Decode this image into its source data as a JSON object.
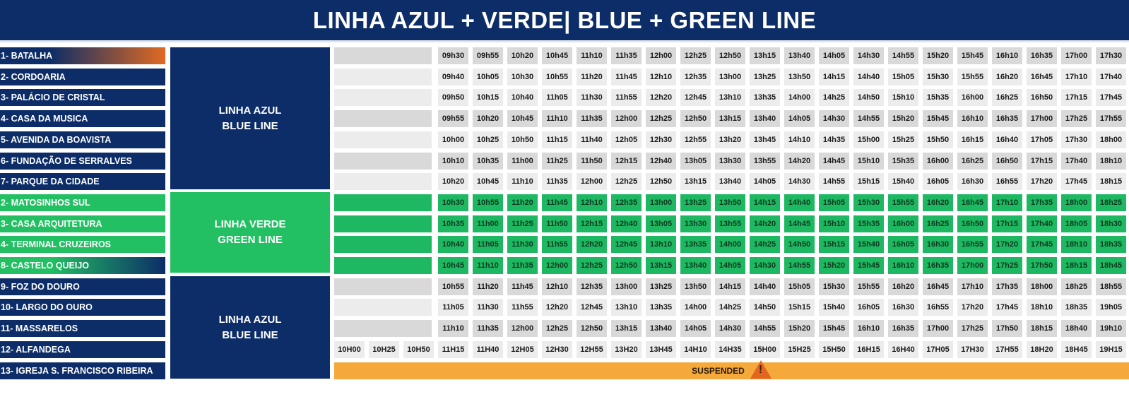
{
  "title": "LINHA AZUL + VERDE|  BLUE + GREEN LINE",
  "colors": {
    "navy": "#0c2d67",
    "green": "#22c063",
    "orange": "#e06a22",
    "suspended": "#f5a93a"
  },
  "line_blocks": [
    {
      "line1": "LINHA AZUL",
      "line2": "BLUE LINE",
      "color": "blue"
    },
    {
      "line1": "LINHA VERDE",
      "line2": "GREEN LINE",
      "color": "green"
    },
    {
      "line1": "LINHA AZUL",
      "line2": "BLUE LINE",
      "color": "blue"
    }
  ],
  "rows": [
    {
      "station": "1- BATALHA",
      "style": "grad-orange",
      "tone": "dark",
      "times": [
        "09h30",
        "09h55",
        "10h20",
        "10h45",
        "11h10",
        "11h35",
        "12h00",
        "12h25",
        "12h50",
        "13h15",
        "13h40",
        "14h05",
        "14h30",
        "14h55",
        "15h20",
        "15h45",
        "16h10",
        "16h35",
        "17h00",
        "17h30"
      ]
    },
    {
      "station": "2- CORDOARIA",
      "style": "blue",
      "tone": "light",
      "times": [
        "09h40",
        "10h05",
        "10h30",
        "10h55",
        "11h20",
        "11h45",
        "12h10",
        "12h35",
        "13h00",
        "13h25",
        "13h50",
        "14h15",
        "14h40",
        "15h05",
        "15h30",
        "15h55",
        "16h20",
        "16h45",
        "17h10",
        "17h40"
      ]
    },
    {
      "station": "3- PALÁCIO DE CRISTAL",
      "style": "blue",
      "tone": "light",
      "times": [
        "09h50",
        "10h15",
        "10h40",
        "11h05",
        "11h30",
        "11h55",
        "12h20",
        "12h45",
        "13h10",
        "13h35",
        "14h00",
        "14h25",
        "14h50",
        "15h10",
        "15h35",
        "16h00",
        "16h25",
        "16h50",
        "17h15",
        "17h45"
      ]
    },
    {
      "station": "4- CASA DA MUSICA",
      "style": "blue",
      "tone": "dark",
      "times": [
        "09h55",
        "10h20",
        "10h45",
        "11h10",
        "11h35",
        "12h00",
        "12h25",
        "12h50",
        "13h15",
        "13h40",
        "14h05",
        "14h30",
        "14h55",
        "15h20",
        "15h45",
        "16h10",
        "16h35",
        "17h00",
        "17h25",
        "17h55"
      ]
    },
    {
      "station": "5- AVENIDA DA BOAVISTA",
      "style": "blue",
      "tone": "light",
      "times": [
        "10h00",
        "10h25",
        "10h50",
        "11h15",
        "11h40",
        "12h05",
        "12h30",
        "12h55",
        "13h20",
        "13h45",
        "14h10",
        "14h35",
        "15h00",
        "15h25",
        "15h50",
        "16h15",
        "16h40",
        "17h05",
        "17h30",
        "18h00"
      ]
    },
    {
      "station": "6- FUNDAÇÃO DE SERRALVES",
      "style": "blue",
      "tone": "dark",
      "times": [
        "10h10",
        "10h35",
        "11h00",
        "11h25",
        "11h50",
        "12h15",
        "12h40",
        "13h05",
        "13h30",
        "13h55",
        "14h20",
        "14h45",
        "15h10",
        "15h35",
        "16h00",
        "16h25",
        "16h50",
        "17h15",
        "17h40",
        "18h10"
      ]
    },
    {
      "station": "7- PARQUE DA CIDADE",
      "style": "blue",
      "tone": "light",
      "times": [
        "10h20",
        "10h45",
        "11h10",
        "11h35",
        "12h00",
        "12h25",
        "12h50",
        "13h15",
        "13h40",
        "14h05",
        "14h30",
        "14h55",
        "15h15",
        "15h40",
        "16h05",
        "16h30",
        "16h55",
        "17h20",
        "17h45",
        "18h15"
      ]
    },
    {
      "station": "2- MATOSINHOS SUL",
      "style": "green",
      "tone": "green",
      "times": [
        "10h30",
        "10h55",
        "11h20",
        "11h45",
        "12h10",
        "12h35",
        "13h00",
        "13h25",
        "13h50",
        "14h15",
        "14h40",
        "15h05",
        "15h30",
        "15h55",
        "16h20",
        "16h45",
        "17h10",
        "17h35",
        "18h00",
        "18h25"
      ]
    },
    {
      "station": "3- CASA ARQUITETURA",
      "style": "green",
      "tone": "green",
      "times": [
        "10h35",
        "11h00",
        "11h25",
        "11h50",
        "12h15",
        "12h40",
        "13h05",
        "13h30",
        "13h55",
        "14h20",
        "14h45",
        "15h10",
        "15h35",
        "16h00",
        "16h25",
        "16h50",
        "17h15",
        "17h40",
        "18h05",
        "18h30"
      ]
    },
    {
      "station": "4- TERMINAL CRUZEIROS",
      "style": "green",
      "tone": "green",
      "times": [
        "10h40",
        "11h05",
        "11h30",
        "11h55",
        "12h20",
        "12h45",
        "13h10",
        "13h35",
        "14h00",
        "14h25",
        "14h50",
        "15h15",
        "15h40",
        "16h05",
        "16h30",
        "16h55",
        "17h20",
        "17h45",
        "18h10",
        "18h35"
      ]
    },
    {
      "station": "8- CASTELO QUEIJO",
      "style": "grad-green",
      "tone": "green",
      "times": [
        "10h45",
        "11h10",
        "11h35",
        "12h00",
        "12h25",
        "12h50",
        "13h15",
        "13h40",
        "14h05",
        "14h30",
        "14h55",
        "15h20",
        "15h45",
        "16h10",
        "16h35",
        "17h00",
        "17h25",
        "17h50",
        "18h15",
        "18h45"
      ]
    },
    {
      "station": "9- FOZ DO DOURO",
      "style": "blue",
      "tone": "dark",
      "times": [
        "10h55",
        "11h20",
        "11h45",
        "12h10",
        "12h35",
        "13h00",
        "13h25",
        "13h50",
        "14h15",
        "14h40",
        "15h05",
        "15h30",
        "15h55",
        "16h20",
        "16h45",
        "17h10",
        "17h35",
        "18h00",
        "18h25",
        "18h55"
      ]
    },
    {
      "station": "10- LARGO DO OURO",
      "style": "blue",
      "tone": "light",
      "times": [
        "11h05",
        "11h30",
        "11h55",
        "12h20",
        "12h45",
        "13h10",
        "13h35",
        "14h00",
        "14h25",
        "14h50",
        "15h15",
        "15h40",
        "16h05",
        "16h30",
        "16h55",
        "17h20",
        "17h45",
        "18h10",
        "18h35",
        "19h05"
      ]
    },
    {
      "station": "11- MASSARELOS",
      "style": "blue",
      "tone": "dark",
      "times": [
        "11h10",
        "11h35",
        "12h00",
        "12h25",
        "12h50",
        "13h15",
        "13h40",
        "14h05",
        "14h30",
        "14h55",
        "15h20",
        "15h45",
        "16h10",
        "16h35",
        "17h00",
        "17h25",
        "17h50",
        "18h15",
        "18h40",
        "19h10"
      ]
    },
    {
      "station": "12- ALFANDEGA",
      "style": "blue",
      "tone": "light",
      "times": [
        "10H00",
        "10H25",
        "10H50",
        "11H15",
        "11H40",
        "12H05",
        "12H30",
        "12H55",
        "13H20",
        "13H45",
        "14H10",
        "14H35",
        "15H00",
        "15H25",
        "15H50",
        "16H15",
        "16H40",
        "17H05",
        "17H30",
        "17H55",
        "18H20",
        "18H45",
        "19H15"
      ]
    },
    {
      "station": "13- IGREJA S. FRANCISCO RIBEIRA",
      "style": "blue",
      "tone": "suspended",
      "times": []
    }
  ],
  "suspended_label": "SUSPENDED",
  "warning_icon": "warning-triangle-icon"
}
